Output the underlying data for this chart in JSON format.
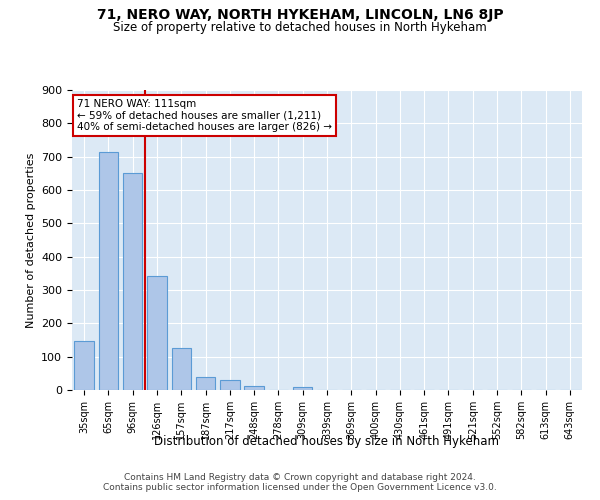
{
  "title": "71, NERO WAY, NORTH HYKEHAM, LINCOLN, LN6 8JP",
  "subtitle": "Size of property relative to detached houses in North Hykeham",
  "xlabel": "Distribution of detached houses by size in North Hykeham",
  "ylabel": "Number of detached properties",
  "categories": [
    "35sqm",
    "65sqm",
    "96sqm",
    "126sqm",
    "157sqm",
    "187sqm",
    "217sqm",
    "248sqm",
    "278sqm",
    "309sqm",
    "339sqm",
    "369sqm",
    "400sqm",
    "430sqm",
    "461sqm",
    "491sqm",
    "521sqm",
    "552sqm",
    "582sqm",
    "613sqm",
    "643sqm"
  ],
  "values": [
    148,
    713,
    651,
    343,
    126,
    39,
    29,
    11,
    0,
    10,
    0,
    0,
    0,
    0,
    0,
    0,
    0,
    0,
    0,
    0,
    0
  ],
  "bar_color": "#aec6e8",
  "bar_edge_color": "#5b9bd5",
  "annotation_text_line1": "71 NERO WAY: 111sqm",
  "annotation_text_line2": "← 59% of detached houses are smaller (1,211)",
  "annotation_text_line3": "40% of semi-detached houses are larger (826) →",
  "annotation_box_color": "#ffffff",
  "annotation_box_edge_color": "#cc0000",
  "red_line_color": "#cc0000",
  "background_color": "#dce9f5",
  "ylim": [
    0,
    900
  ],
  "yticks": [
    0,
    100,
    200,
    300,
    400,
    500,
    600,
    700,
    800,
    900
  ],
  "footer_line1": "Contains HM Land Registry data © Crown copyright and database right 2024.",
  "footer_line2": "Contains public sector information licensed under the Open Government Licence v3.0."
}
